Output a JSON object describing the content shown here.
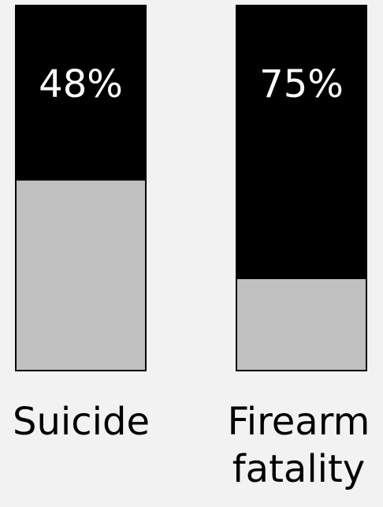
{
  "chart_data": {
    "type": "bar",
    "categories": [
      "Suicide",
      "Firearm\nfatality"
    ],
    "values": [
      48,
      75
    ],
    "value_labels": [
      "48%",
      "75%"
    ],
    "ylim": [
      0,
      100
    ],
    "colors": {
      "filled": "#000000",
      "remainder": "#c0c0c0",
      "value_text": "#ffffff",
      "background": "#f2f2f2"
    },
    "grid": false,
    "legend": "none"
  }
}
